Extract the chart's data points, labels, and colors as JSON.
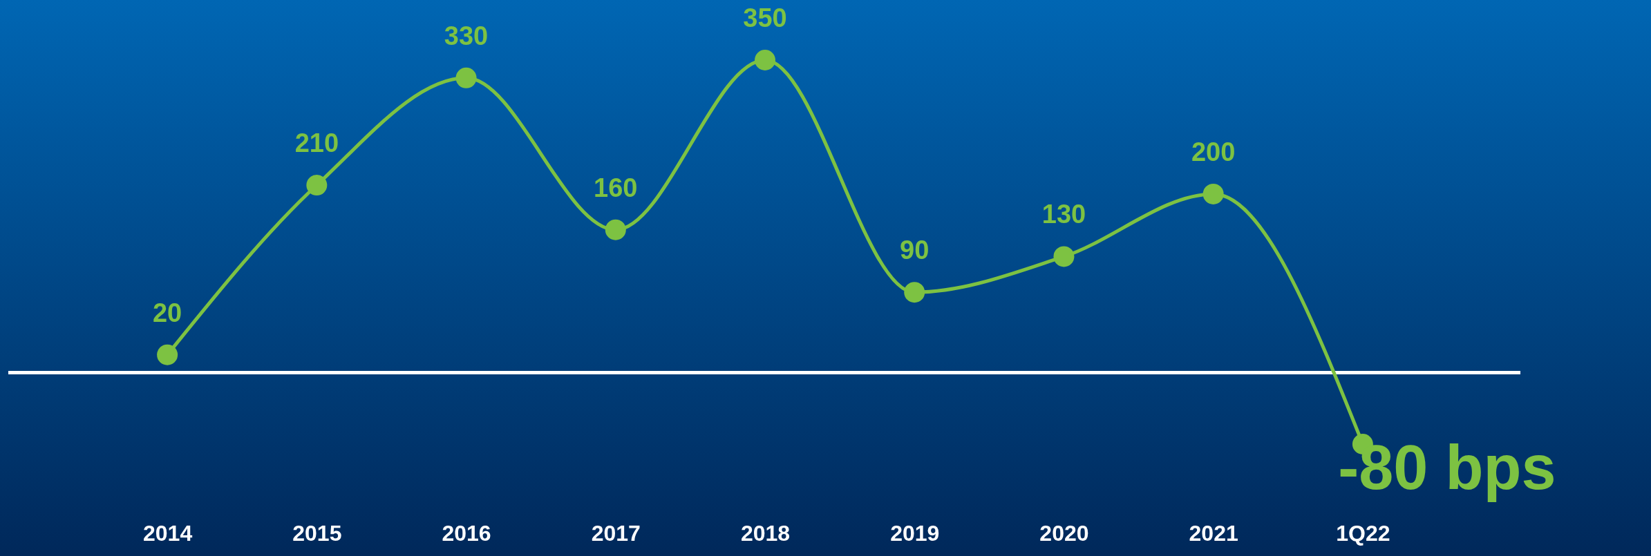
{
  "chart_data": {
    "type": "line",
    "categories": [
      "2014",
      "2015",
      "2016",
      "2017",
      "2018",
      "2019",
      "2020",
      "2021",
      "1Q22"
    ],
    "values": [
      20,
      210,
      330,
      160,
      350,
      90,
      130,
      200,
      -80
    ],
    "value_labels": [
      "20",
      "210",
      "330",
      "160",
      "350",
      "90",
      "130",
      "200",
      "-80 bps"
    ],
    "color": "#7dc242",
    "marker": "circle",
    "line_style": "solid",
    "ref_lines": [
      {
        "axis": "y",
        "value": 0,
        "color": "#ffffff"
      }
    ]
  }
}
